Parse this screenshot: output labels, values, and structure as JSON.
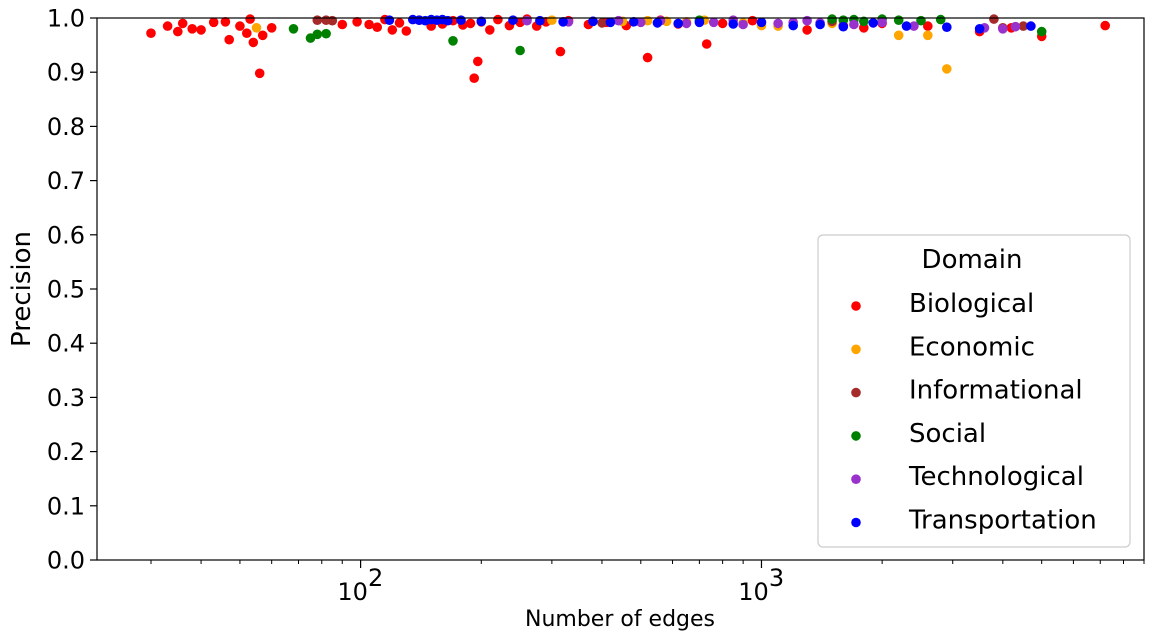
{
  "chart_data": {
    "type": "scatter",
    "xlabel": "Number of edges",
    "ylabel": "Precision",
    "xscale": "log",
    "xlim": [
      22,
      9000
    ],
    "ylim": [
      0.0,
      1.0
    ],
    "grid": false,
    "x_ticks": [
      {
        "value": 100,
        "label": "10",
        "exp": "2"
      },
      {
        "value": 1000,
        "label": "10",
        "exp": "3"
      }
    ],
    "y_ticks": [
      "0.0",
      "0.1",
      "0.2",
      "0.3",
      "0.4",
      "0.5",
      "0.6",
      "0.7",
      "0.8",
      "0.9",
      "1.0"
    ],
    "legend": {
      "title": "Domain",
      "position": "lower-right"
    },
    "series": [
      {
        "name": "Biological",
        "color": "#ff0000",
        "points": [
          [
            30,
            0.972
          ],
          [
            33,
            0.985
          ],
          [
            35,
            0.975
          ],
          [
            36,
            0.99
          ],
          [
            38,
            0.98
          ],
          [
            40,
            0.978
          ],
          [
            43,
            0.992
          ],
          [
            46,
            0.993
          ],
          [
            47,
            0.96
          ],
          [
            50,
            0.985
          ],
          [
            52,
            0.972
          ],
          [
            53,
            0.998
          ],
          [
            54,
            0.955
          ],
          [
            56,
            0.898
          ],
          [
            57,
            0.968
          ],
          [
            60,
            0.982
          ],
          [
            90,
            0.988
          ],
          [
            98,
            0.993
          ],
          [
            105,
            0.988
          ],
          [
            110,
            0.983
          ],
          [
            115,
            0.997
          ],
          [
            120,
            0.978
          ],
          [
            125,
            0.991
          ],
          [
            130,
            0.976
          ],
          [
            140,
            0.996
          ],
          [
            150,
            0.985
          ],
          [
            160,
            0.989
          ],
          [
            170,
            0.995
          ],
          [
            180,
            0.987
          ],
          [
            188,
            0.99
          ],
          [
            192,
            0.889
          ],
          [
            196,
            0.92
          ],
          [
            200,
            0.993
          ],
          [
            210,
            0.978
          ],
          [
            220,
            0.997
          ],
          [
            235,
            0.986
          ],
          [
            250,
            0.992
          ],
          [
            260,
            0.998
          ],
          [
            275,
            0.985
          ],
          [
            290,
            0.993
          ],
          [
            315,
            0.938
          ],
          [
            330,
            0.995
          ],
          [
            370,
            0.988
          ],
          [
            410,
            0.992
          ],
          [
            460,
            0.986
          ],
          [
            520,
            0.927
          ],
          [
            560,
            0.996
          ],
          [
            620,
            0.989
          ],
          [
            730,
            0.952
          ],
          [
            800,
            0.99
          ],
          [
            950,
            0.995
          ],
          [
            1300,
            0.978
          ],
          [
            1600,
            0.986
          ],
          [
            1800,
            0.982
          ],
          [
            2000,
            0.99
          ],
          [
            2600,
            0.985
          ],
          [
            3500,
            0.975
          ],
          [
            4200,
            0.982
          ],
          [
            5000,
            0.966
          ],
          [
            7200,
            0.986
          ]
        ]
      },
      {
        "name": "Economic",
        "color": "#ffa500",
        "points": [
          [
            55,
            0.982
          ],
          [
            300,
            0.996
          ],
          [
            450,
            0.994
          ],
          [
            520,
            0.995
          ],
          [
            580,
            0.994
          ],
          [
            650,
            0.993
          ],
          [
            720,
            0.996
          ],
          [
            900,
            0.991
          ],
          [
            1000,
            0.986
          ],
          [
            1100,
            0.985
          ],
          [
            1500,
            0.99
          ],
          [
            2200,
            0.968
          ],
          [
            2600,
            0.968
          ],
          [
            2900,
            0.906
          ]
        ]
      },
      {
        "name": "Informational",
        "color": "#a52a2a",
        "points": [
          [
            78,
            0.996
          ],
          [
            82,
            0.996
          ],
          [
            85,
            0.995
          ],
          [
            400,
            0.991
          ],
          [
            1500,
            0.994
          ],
          [
            3800,
            0.998
          ],
          [
            4000,
            0.982
          ],
          [
            4500,
            0.985
          ]
        ]
      },
      {
        "name": "Social",
        "color": "#008000",
        "points": [
          [
            68,
            0.98
          ],
          [
            75,
            0.963
          ],
          [
            78,
            0.97
          ],
          [
            82,
            0.971
          ],
          [
            170,
            0.958
          ],
          [
            250,
            0.94
          ],
          [
            700,
            0.996
          ],
          [
            1500,
            0.998
          ],
          [
            1600,
            0.996
          ],
          [
            1700,
            0.997
          ],
          [
            1800,
            0.994
          ],
          [
            2000,
            0.998
          ],
          [
            2200,
            0.996
          ],
          [
            2500,
            0.995
          ],
          [
            2800,
            0.997
          ],
          [
            5000,
            0.975
          ]
        ]
      },
      {
        "name": "Technological",
        "color": "#9932cc",
        "points": [
          [
            260,
            0.995
          ],
          [
            330,
            0.993
          ],
          [
            380,
            0.994
          ],
          [
            440,
            0.995
          ],
          [
            500,
            0.992
          ],
          [
            560,
            0.995
          ],
          [
            650,
            0.99
          ],
          [
            760,
            0.992
          ],
          [
            850,
            0.996
          ],
          [
            900,
            0.988
          ],
          [
            1100,
            0.99
          ],
          [
            1200,
            0.992
          ],
          [
            1300,
            0.995
          ],
          [
            1400,
            0.991
          ],
          [
            1700,
            0.988
          ],
          [
            2000,
            0.992
          ],
          [
            2400,
            0.985
          ],
          [
            3600,
            0.982
          ],
          [
            4000,
            0.98
          ],
          [
            4300,
            0.984
          ]
        ]
      },
      {
        "name": "Transportation",
        "color": "#0000ff",
        "points": [
          [
            118,
            0.996
          ],
          [
            135,
            0.997
          ],
          [
            140,
            0.996
          ],
          [
            145,
            0.995
          ],
          [
            150,
            0.997
          ],
          [
            155,
            0.996
          ],
          [
            160,
            0.997
          ],
          [
            165,
            0.995
          ],
          [
            178,
            0.996
          ],
          [
            200,
            0.994
          ],
          [
            240,
            0.996
          ],
          [
            280,
            0.995
          ],
          [
            320,
            0.993
          ],
          [
            380,
            0.994
          ],
          [
            420,
            0.992
          ],
          [
            480,
            0.993
          ],
          [
            550,
            0.991
          ],
          [
            620,
            0.99
          ],
          [
            700,
            0.992
          ],
          [
            850,
            0.989
          ],
          [
            1000,
            0.992
          ],
          [
            1200,
            0.986
          ],
          [
            1400,
            0.988
          ],
          [
            1600,
            0.984
          ],
          [
            1900,
            0.991
          ],
          [
            2300,
            0.985
          ],
          [
            2900,
            0.983
          ],
          [
            3500,
            0.98
          ],
          [
            4700,
            0.985
          ]
        ]
      }
    ]
  }
}
